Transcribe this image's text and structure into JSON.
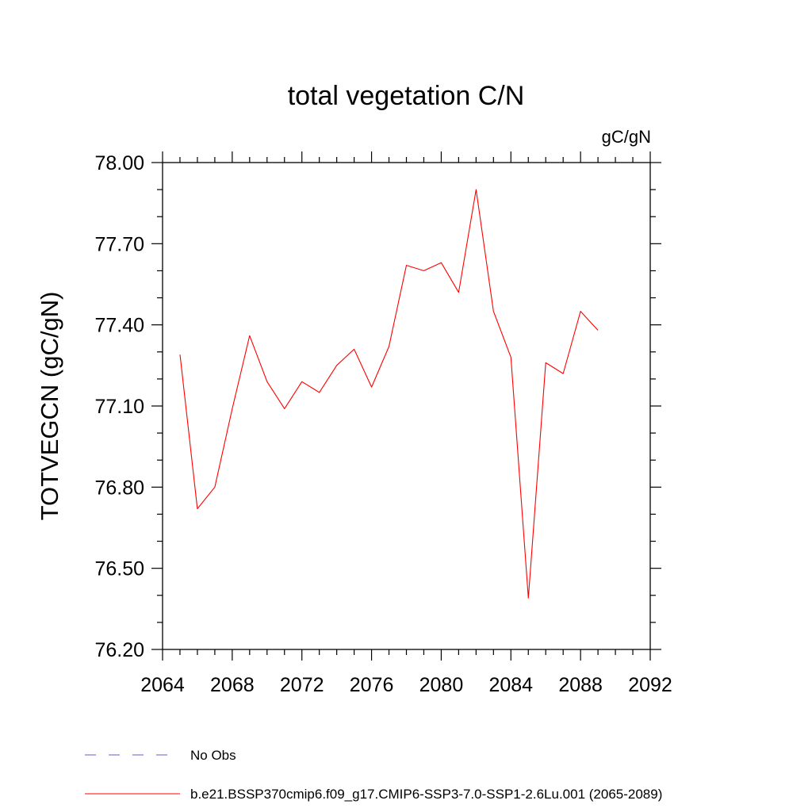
{
  "chart_data": {
    "type": "line",
    "title": "total vegetation C/N",
    "units": "gC/gN",
    "ylabel": "TOTVEGCN  (gC/gN)",
    "xlabel": "",
    "xlim": [
      2064,
      2092
    ],
    "ylim": [
      76.2,
      78.0
    ],
    "x_ticks": [
      2064,
      2068,
      2072,
      2076,
      2080,
      2084,
      2088,
      2092
    ],
    "x_tick_labels": [
      "2064",
      "2068",
      "2072",
      "2076",
      "2080",
      "2084",
      "2088",
      "2092"
    ],
    "y_ticks": [
      76.2,
      76.5,
      76.8,
      77.1,
      77.4,
      77.7,
      78.0
    ],
    "y_tick_labels": [
      "76.20",
      "76.50",
      "76.80",
      "77.10",
      "77.40",
      "77.70",
      "78.00"
    ],
    "grid": false,
    "legend_position": "bottom",
    "legend": [
      {
        "label": "No Obs",
        "color": "#6a5acd",
        "style": "dashed"
      },
      {
        "label": "b.e21.BSSP370cmip6.f09_g17.CMIP6-SSP3-7.0-SSP1-2.6Lu.001 (2065-2089)",
        "color": "#ff0000",
        "style": "solid"
      }
    ],
    "series": [
      {
        "color": "#ff0000",
        "x": [
          2065,
          2066,
          2067,
          2068,
          2069,
          2070,
          2071,
          2072,
          2073,
          2074,
          2075,
          2076,
          2077,
          2078,
          2079,
          2080,
          2081,
          2082,
          2083,
          2084,
          2085,
          2086,
          2087,
          2088,
          2089
        ],
        "y": [
          77.29,
          76.72,
          76.8,
          77.09,
          77.36,
          77.19,
          77.09,
          77.19,
          77.15,
          77.25,
          77.31,
          77.17,
          77.32,
          77.62,
          77.6,
          77.63,
          77.52,
          77.9,
          77.45,
          77.28,
          76.39,
          77.26,
          77.22,
          77.45,
          77.38
        ]
      }
    ]
  }
}
